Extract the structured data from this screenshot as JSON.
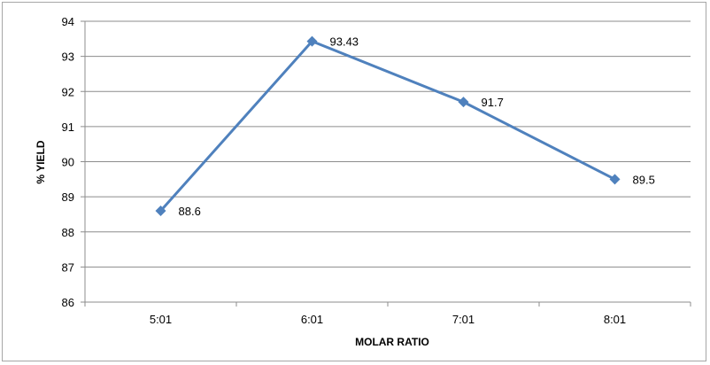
{
  "chart_data": {
    "type": "line",
    "title": "",
    "xlabel": "MOLAR RATIO",
    "ylabel": "% YIELD",
    "categories": [
      "5:01",
      "6:01",
      "7:01",
      "8:01"
    ],
    "series": [
      {
        "values": [
          88.6,
          93.43,
          91.7,
          89.5
        ],
        "color": "#4f81bd",
        "marker": "diamond"
      }
    ],
    "data_labels": [
      "88.6",
      "93.43",
      "91.7",
      "89.5"
    ],
    "ylim": [
      86,
      94
    ],
    "yticks": [
      86,
      87,
      88,
      89,
      90,
      91,
      92,
      93,
      94
    ],
    "grid": true,
    "legend": "none",
    "gridline_color": "#8c8c8c"
  }
}
